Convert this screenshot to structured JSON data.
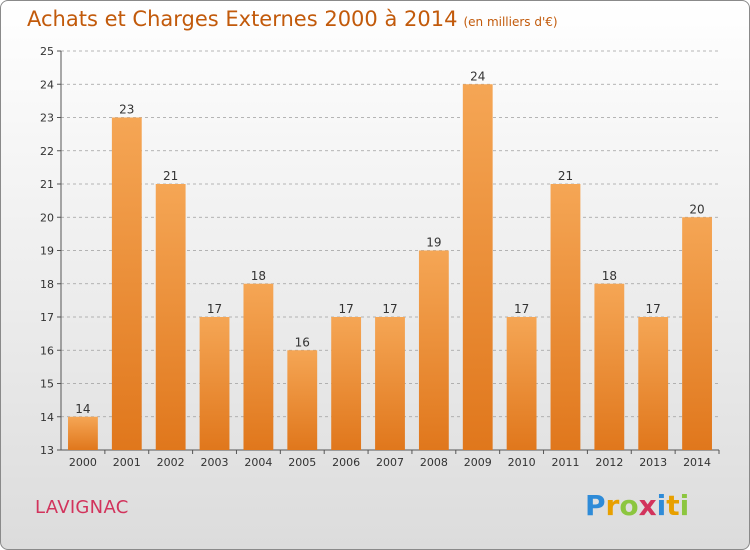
{
  "header": {
    "title": "Achats et Charges Externes 2000 à 2014",
    "unit": "(en milliers d'€)"
  },
  "footer": {
    "town": "LAVIGNAC",
    "logo_text": "Proxiti"
  },
  "colors": {
    "bar_top": "#f5a655",
    "bar_bottom": "#e0771c",
    "title": "#c25a0b",
    "town": "#d2335c",
    "grid": "#9e9e9e"
  },
  "chart_data": {
    "type": "bar",
    "title": "Achats et Charges Externes 2000 à 2014",
    "xlabel": "",
    "ylabel": "",
    "categories": [
      "2000",
      "2001",
      "2002",
      "2003",
      "2004",
      "2005",
      "2006",
      "2007",
      "2008",
      "2009",
      "2010",
      "2011",
      "2012",
      "2013",
      "2014"
    ],
    "values": [
      14,
      23,
      21,
      17,
      18,
      16,
      17,
      17,
      19,
      24,
      17,
      21,
      18,
      17,
      20
    ],
    "ylim": [
      13,
      25
    ],
    "yticks": [
      13,
      14,
      15,
      16,
      17,
      18,
      19,
      20,
      21,
      22,
      23,
      24,
      25
    ],
    "grid": true,
    "legend": "none"
  }
}
